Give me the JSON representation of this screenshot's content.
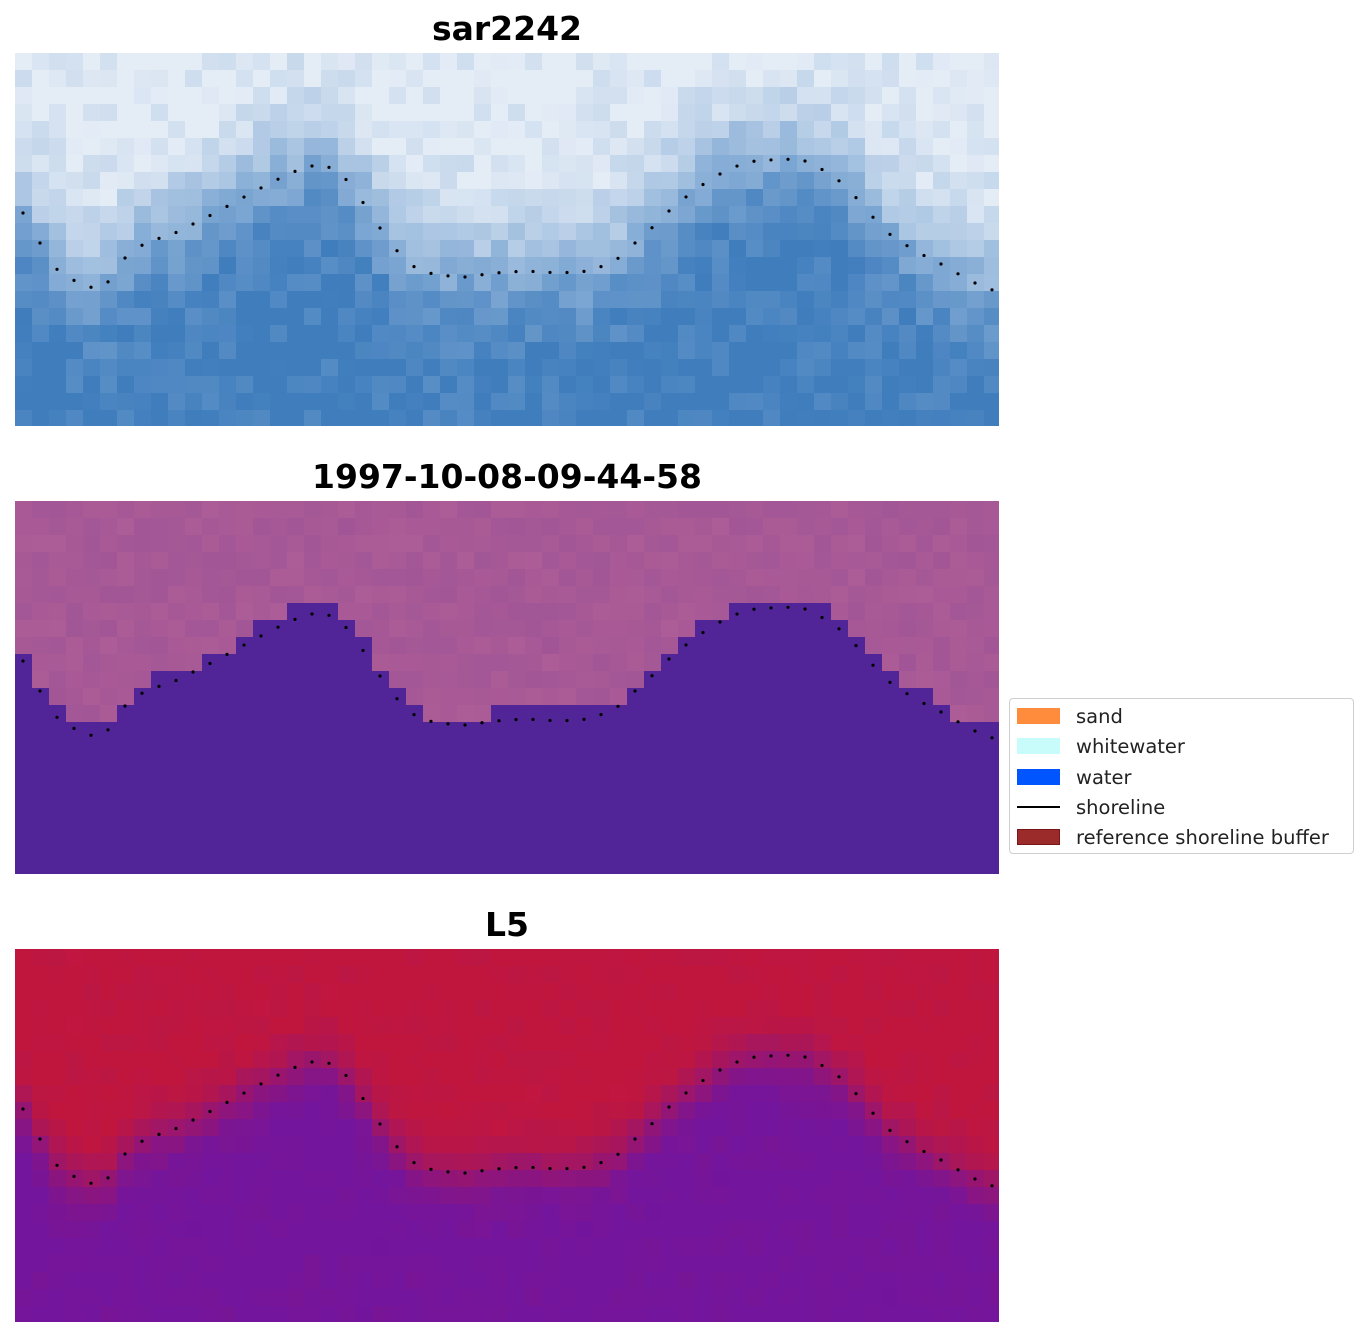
{
  "panels": [
    {
      "title": "sar2242"
    },
    {
      "title": "1997-10-08-09-44-58"
    },
    {
      "title": "L5"
    }
  ],
  "legend": {
    "items": [
      {
        "label": "sand",
        "kind": "patch",
        "color": "#ff8c3c",
        "edge": "#ff8c3c"
      },
      {
        "label": "whitewater",
        "kind": "patch",
        "color": "#c8fcfa",
        "edge": "#c8fcfa"
      },
      {
        "label": "water",
        "kind": "patch",
        "color": "#0055ff",
        "edge": "#0055ff"
      },
      {
        "label": "shoreline",
        "kind": "line",
        "color": "#000000"
      },
      {
        "label": "reference shoreline buffer",
        "kind": "patch",
        "color": "#9b2a2a",
        "edge": "#7a1616"
      }
    ]
  },
  "colors": {
    "rgb_land": "#e4ecf6",
    "rgb_water": "#3f7dbd",
    "class_land": "#ac5c96",
    "class_water": "#512598",
    "prob_land": "#c0163e",
    "prob_water": "#73159d",
    "shoreline_dots": "#000000"
  }
}
